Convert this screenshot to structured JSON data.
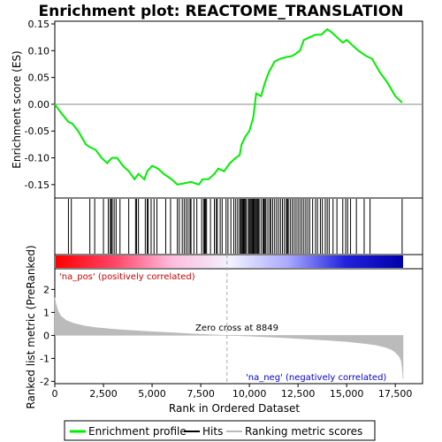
{
  "chart_data": {
    "type": "line",
    "title": "Enrichment plot: REACTOME_TRANSLATION",
    "panels": {
      "enrichment": {
        "ylabel": "Enrichment score (ES)",
        "ylim": [
          -0.175,
          0.155
        ],
        "yticks": [
          -0.15,
          -0.1,
          -0.05,
          0.0,
          0.05,
          0.1,
          0.15
        ],
        "ytick_labels": [
          "-0.15",
          "-0.10",
          "-0.05",
          "0.00",
          "0.05",
          "0.10",
          "0.15"
        ],
        "zero_line": 0.0,
        "series": [
          {
            "name": "Enrichment profile",
            "color": "#00ee00",
            "x": [
              0,
              300,
              700,
              900,
              1200,
              1600,
              1800,
              2100,
              2400,
              2700,
              2800,
              2950,
              3200,
              3500,
              3800,
              4100,
              4300,
              4600,
              4750,
              5000,
              5300,
              5600,
              6000,
              6300,
              6600,
              7000,
              7400,
              7600,
              7900,
              8200,
              8400,
              8700,
              9000,
              9300,
              9500,
              9600,
              9800,
              10000,
              10200,
              10350,
              10600,
              10800,
              11000,
              11300,
              11600,
              11900,
              12200,
              12600,
              12800,
              13100,
              13400,
              13700,
              14000,
              14200,
              14500,
              14800,
              15000,
              15300,
              15600,
              16000,
              16300,
              16700,
              17100,
              17500,
              17850
            ],
            "y": [
              0.0,
              -0.015,
              -0.033,
              -0.036,
              -0.05,
              -0.075,
              -0.08,
              -0.085,
              -0.1,
              -0.11,
              -0.105,
              -0.1,
              -0.1,
              -0.115,
              -0.125,
              -0.14,
              -0.13,
              -0.14,
              -0.125,
              -0.115,
              -0.12,
              -0.13,
              -0.14,
              -0.15,
              -0.148,
              -0.145,
              -0.15,
              -0.14,
              -0.14,
              -0.13,
              -0.12,
              -0.125,
              -0.11,
              -0.1,
              -0.095,
              -0.075,
              -0.06,
              -0.05,
              -0.025,
              0.02,
              0.015,
              0.04,
              0.06,
              0.08,
              0.085,
              0.088,
              0.09,
              0.1,
              0.12,
              0.125,
              0.13,
              0.13,
              0.14,
              0.135,
              0.125,
              0.115,
              0.12,
              0.11,
              0.1,
              0.09,
              0.085,
              0.06,
              0.04,
              0.015,
              0.003
            ]
          }
        ]
      },
      "hits": {
        "name": "Hits",
        "positions": [
          700,
          850,
          1800,
          2050,
          2500,
          2750,
          2850,
          2900,
          2950,
          3050,
          3150,
          3350,
          3800,
          4150,
          4200,
          4300,
          4650,
          4750,
          4800,
          4950,
          5100,
          5250,
          5700,
          5950,
          6300,
          6400,
          6550,
          6650,
          6750,
          6850,
          6950,
          7000,
          7150,
          7300,
          7550,
          7650,
          7700,
          7750,
          7800,
          8000,
          8200,
          8300,
          8350,
          8500,
          8600,
          8800,
          8900,
          9050,
          9200,
          9300,
          9400,
          9500,
          9550,
          9600,
          9650,
          9700,
          9750,
          9800,
          9850,
          9950,
          10000,
          10050,
          10100,
          10150,
          10200,
          10250,
          10300,
          10350,
          10400,
          10450,
          10500,
          10600,
          10700,
          10750,
          10800,
          10850,
          10950,
          11050,
          11100,
          11200,
          11300,
          11400,
          11500,
          11600,
          11700,
          11800,
          11900,
          11950,
          12000,
          12100,
          12200,
          12300,
          12400,
          12500,
          12600,
          12700,
          12800,
          12900,
          13000,
          13100,
          13250,
          13400,
          13500,
          13650,
          13750,
          13900,
          14000,
          14100,
          14300,
          14500,
          14800,
          14950,
          15050,
          15200,
          15500,
          15900,
          16200,
          17850
        ]
      },
      "ranking": {
        "name": "Ranking metric scores",
        "ylabel": "Ranked list metric (PreRanked)",
        "ylim": [
          -2.1,
          2.9
        ],
        "yticks": [
          -2,
          -1,
          0,
          1,
          2
        ],
        "ytick_labels": [
          "-2",
          "-1",
          "0",
          "1",
          "2"
        ],
        "x": [
          0,
          50,
          150,
          300,
          600,
          1000,
          1500,
          2000,
          3000,
          4000,
          5000,
          6000,
          7000,
          8000,
          8849,
          10000,
          11000,
          12000,
          13000,
          14000,
          15000,
          16000,
          16500,
          17000,
          17300,
          17500,
          17700,
          17800,
          17850,
          17900
        ],
        "y": [
          1.65,
          1.4,
          1.1,
          0.85,
          0.65,
          0.52,
          0.42,
          0.35,
          0.27,
          0.21,
          0.16,
          0.12,
          0.07,
          0.03,
          0.0,
          -0.03,
          -0.07,
          -0.11,
          -0.16,
          -0.21,
          -0.27,
          -0.36,
          -0.42,
          -0.52,
          -0.62,
          -0.74,
          -0.92,
          -1.1,
          -1.4,
          -1.9
        ]
      }
    },
    "x_axis": {
      "xlabel": "Rank in Ordered Dataset",
      "xlim": [
        0,
        18900
      ],
      "xticks": [
        0,
        2500,
        5000,
        7500,
        10000,
        12500,
        15000,
        17500
      ],
      "xtick_labels": [
        "0",
        "2,500",
        "5,000",
        "7,500",
        "10,000",
        "12,500",
        "15,000",
        "17,500"
      ]
    },
    "colorbar": {
      "end": 17900,
      "stops": [
        "#ff0000",
        "#ff4466",
        "#ffbbdd",
        "#f2f2ff",
        "#aaaaff",
        "#2222dd",
        "#0000aa"
      ]
    },
    "annotations": {
      "pos_label": "'na_pos' (positively correlated)",
      "pos_color": "#cc0000",
      "neg_label": "'na_neg' (negatively correlated)",
      "neg_color": "#0000cc",
      "zero_cross_label": "Zero cross at 8849",
      "zero_cross": 8849
    },
    "legend": {
      "placement": "bottom",
      "items": [
        {
          "label": "Enrichment profile",
          "color": "#00ee00",
          "kind": "line"
        },
        {
          "label": "Hits",
          "color": "#000000",
          "kind": "line"
        },
        {
          "label": "Ranking metric scores",
          "color": "#bbbbbb",
          "kind": "line"
        }
      ]
    }
  }
}
